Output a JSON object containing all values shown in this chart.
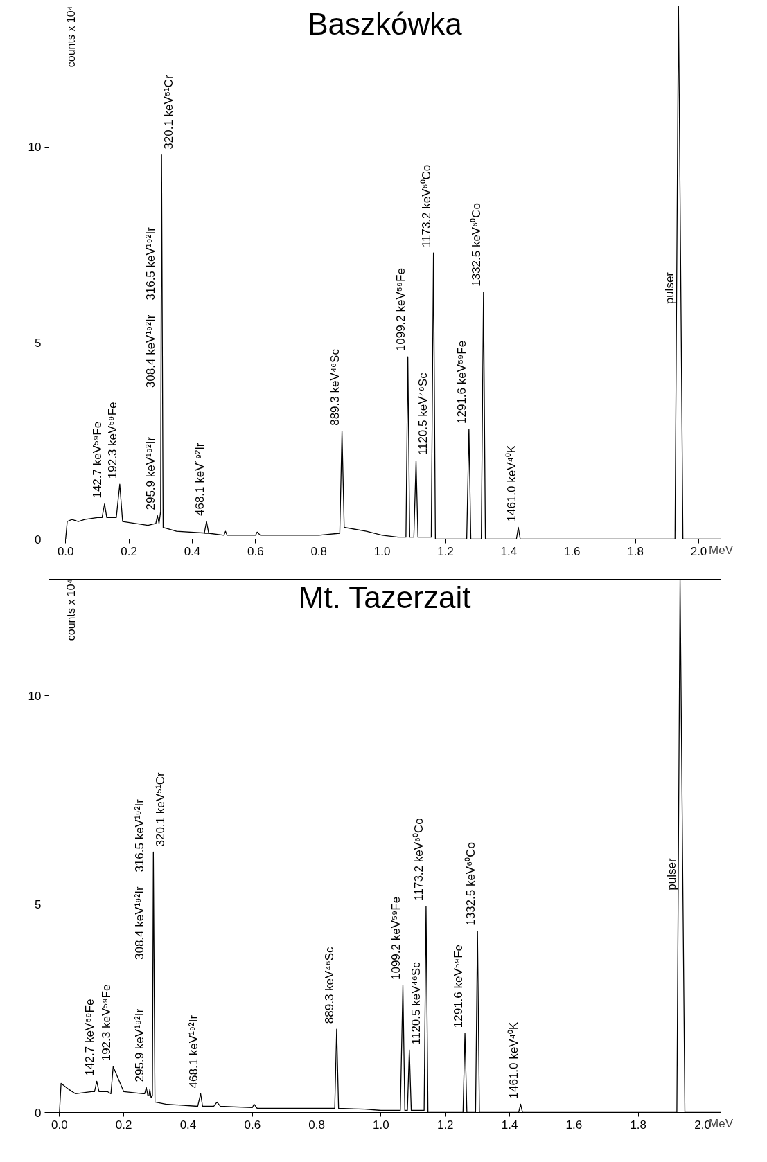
{
  "chart_data": [
    {
      "type": "line",
      "title": "Baszkówka",
      "xlabel": "MeV",
      "ylabel": "counts x 10⁴",
      "color": "#000000",
      "grid": false,
      "marker": "none",
      "line_style": "solid",
      "xlim": [
        -0.053,
        2.07
      ],
      "ylim": [
        0,
        13.6
      ],
      "xticks": [
        {
          "value": 0,
          "label": "0.0"
        },
        {
          "value": 0.2,
          "label": "0.2"
        },
        {
          "value": 0.4,
          "label": "0.4"
        },
        {
          "value": 0.6,
          "label": "0.6"
        },
        {
          "value": 0.8,
          "label": "0.8"
        },
        {
          "value": 1.0,
          "label": "1.0"
        },
        {
          "value": 1.2,
          "label": "1.2"
        },
        {
          "value": 1.4,
          "label": "1.4"
        },
        {
          "value": 1.6,
          "label": "1.6"
        },
        {
          "value": 1.8,
          "label": "1.8"
        },
        {
          "value": 2.0,
          "label": "2.0"
        }
      ],
      "yticks": [
        0,
        5,
        10
      ],
      "x": [
        0.0,
        0.005,
        0.02,
        0.04,
        0.06,
        0.1,
        0.115,
        0.123,
        0.13,
        0.16,
        0.171,
        0.18,
        0.22,
        0.26,
        0.285,
        0.29,
        0.295,
        0.3,
        0.303,
        0.308,
        0.35,
        0.45,
        0.438,
        0.445,
        0.452,
        0.5,
        0.505,
        0.51,
        0.6,
        0.605,
        0.615,
        0.8,
        0.866,
        0.873,
        0.88,
        0.95,
        1.0,
        1.05,
        1.075,
        1.081,
        1.087,
        1.1,
        1.107,
        1.113,
        1.155,
        1.162,
        1.168,
        1.267,
        1.274,
        1.28,
        1.313,
        1.32,
        1.326,
        1.424,
        1.43,
        1.436,
        1.925,
        1.936,
        1.95,
        2.07
      ],
      "values": [
        0.0,
        0.45,
        0.5,
        0.45,
        0.5,
        0.55,
        0.55,
        0.9,
        0.55,
        0.55,
        1.4,
        0.45,
        0.4,
        0.35,
        0.4,
        0.6,
        0.4,
        0.7,
        9.8,
        0.3,
        0.2,
        0.15,
        0.15,
        0.45,
        0.15,
        0.1,
        0.2,
        0.1,
        0.1,
        0.18,
        0.1,
        0.1,
        0.15,
        2.75,
        0.3,
        0.2,
        0.1,
        0.05,
        0.05,
        4.65,
        0.05,
        0.05,
        2.0,
        0.05,
        0.05,
        7.3,
        0.0,
        0.0,
        2.8,
        0.0,
        0.0,
        6.3,
        0.0,
        0.0,
        0.3,
        0.0,
        0.0,
        13.6,
        0.0,
        0.0
      ],
      "annotations": [
        {
          "text": "142.7 keV⁵⁹Fe",
          "x": 0.123,
          "y": 0.9
        },
        {
          "text": "192.3 keV⁵⁹Fe",
          "x": 0.171,
          "y": 1.4
        },
        {
          "text": "295.9 keV¹⁹²Ir",
          "x": 0.29,
          "y": 0.6
        },
        "308.4 keV¹⁹²Ir",
        "316.5 keV¹⁹²Ir",
        {
          "text": "320.1 keV⁵¹Cr",
          "x": 0.303,
          "y": 9.8
        },
        {
          "text": "468.1 keV¹⁹²Ir",
          "x": 0.445,
          "y": 0.45
        },
        {
          "text": "889.3 keV⁴⁶Sc",
          "x": 0.873,
          "y": 2.75
        },
        {
          "text": "1099.2 keV⁵⁹Fe",
          "x": 1.081,
          "y": 4.65
        },
        {
          "text": "1120.5 keV⁴⁶Sc",
          "x": 1.107,
          "y": 2.0
        },
        {
          "text": "1173.2 keV⁶⁰Co",
          "x": 1.162,
          "y": 7.3
        },
        {
          "text": "1291.6 keV⁵⁹Fe",
          "x": 1.274,
          "y": 2.8
        },
        {
          "text": "1332.5 keV⁶⁰Co",
          "x": 1.32,
          "y": 6.3
        },
        {
          "text": "1461.0 keV⁴⁰K",
          "x": 1.43,
          "y": 0.3
        },
        {
          "text": "pulser",
          "x": 1.93,
          "y": 5.85
        }
      ]
    },
    {
      "type": "line",
      "title": "Mt. Tazerzait",
      "xlabel": "MeV",
      "ylabel": "counts x 10⁴",
      "color": "#000000",
      "grid": false,
      "marker": "none",
      "line_style": "solid",
      "xlim": [
        -0.033,
        2.057
      ],
      "ylim": [
        0,
        12.8
      ],
      "xticks": [
        {
          "value": 0,
          "label": "0.0"
        },
        {
          "value": 0.2,
          "label": "0.2"
        },
        {
          "value": 0.4,
          "label": "0.4"
        },
        {
          "value": 0.6,
          "label": "0.6"
        },
        {
          "value": 0.8,
          "label": "0.8"
        },
        {
          "value": 1.0,
          "label": "1.0"
        },
        {
          "value": 1.2,
          "label": "1.2"
        },
        {
          "value": 1.4,
          "label": "1.4"
        },
        {
          "value": 1.6,
          "label": "1.6"
        },
        {
          "value": 1.8,
          "label": "1.8"
        },
        {
          "value": 2.0,
          "label": "2.0"
        }
      ],
      "yticks": [
        0,
        5,
        10
      ],
      "x": [
        0.0,
        0.005,
        0.03,
        0.05,
        0.1,
        0.109,
        0.116,
        0.123,
        0.15,
        0.16,
        0.167,
        0.2,
        0.26,
        0.265,
        0.27,
        0.275,
        0.278,
        0.281,
        0.285,
        0.289,
        0.292,
        0.297,
        0.33,
        0.43,
        0.439,
        0.445,
        0.48,
        0.49,
        0.5,
        0.6,
        0.605,
        0.615,
        0.8,
        0.856,
        0.862,
        0.868,
        0.95,
        1.0,
        1.06,
        1.068,
        1.074,
        1.082,
        1.088,
        1.094,
        1.134,
        1.14,
        1.146,
        1.255,
        1.261,
        1.267,
        1.294,
        1.3,
        1.306,
        1.428,
        1.434,
        1.44,
        1.92,
        1.93,
        1.945,
        2.057
      ],
      "values": [
        0.0,
        0.7,
        0.55,
        0.45,
        0.5,
        0.5,
        0.75,
        0.5,
        0.5,
        0.45,
        1.1,
        0.5,
        0.45,
        0.45,
        0.6,
        0.4,
        0.4,
        0.55,
        0.35,
        0.4,
        6.25,
        0.25,
        0.2,
        0.15,
        0.45,
        0.15,
        0.15,
        0.25,
        0.15,
        0.12,
        0.2,
        0.1,
        0.1,
        0.1,
        2.0,
        0.1,
        0.08,
        0.05,
        0.05,
        3.05,
        0.05,
        0.05,
        1.5,
        0.05,
        0.05,
        4.95,
        0.0,
        0.0,
        1.9,
        0.0,
        0.0,
        4.35,
        0.0,
        0.0,
        0.2,
        0.0,
        0.0,
        12.8,
        0.0,
        0.0
      ],
      "annotations": [
        {
          "text": "142.7 keV⁵⁹Fe",
          "x": 0.116,
          "y": 0.75
        },
        {
          "text": "192.3 keV⁵⁹Fe",
          "x": 0.167,
          "y": 1.1
        },
        {
          "text": "295.9 keV¹⁹²Ir",
          "x": 0.27,
          "y": 0.6
        },
        "308.4 keV¹⁹²Ir",
        "316.5 keV¹⁹²Ir",
        {
          "text": "320.1 keV⁵¹Cr",
          "x": 0.292,
          "y": 6.25
        },
        {
          "text": "468.1 keV¹⁹²Ir",
          "x": 0.439,
          "y": 0.45
        },
        {
          "text": "889.3 keV⁴⁶Sc",
          "x": 0.862,
          "y": 2.0
        },
        {
          "text": "1099.2 keV⁵⁹Fe",
          "x": 1.068,
          "y": 3.05
        },
        {
          "text": "1120.5 keV⁴⁶Sc",
          "x": 1.088,
          "y": 1.5
        },
        {
          "text": "1173.2 keV⁶⁰Co",
          "x": 1.14,
          "y": 4.95
        },
        {
          "text": "1291.6 keV⁵⁹Fe",
          "x": 1.261,
          "y": 1.9
        },
        {
          "text": "1332.5 keV⁶⁰Co",
          "x": 1.3,
          "y": 4.35
        },
        {
          "text": "1461.0 keV⁴⁰K",
          "x": 1.434,
          "y": 0.2
        },
        {
          "text": "pulser",
          "x": 1.925,
          "y": 5.2
        }
      ]
    }
  ]
}
